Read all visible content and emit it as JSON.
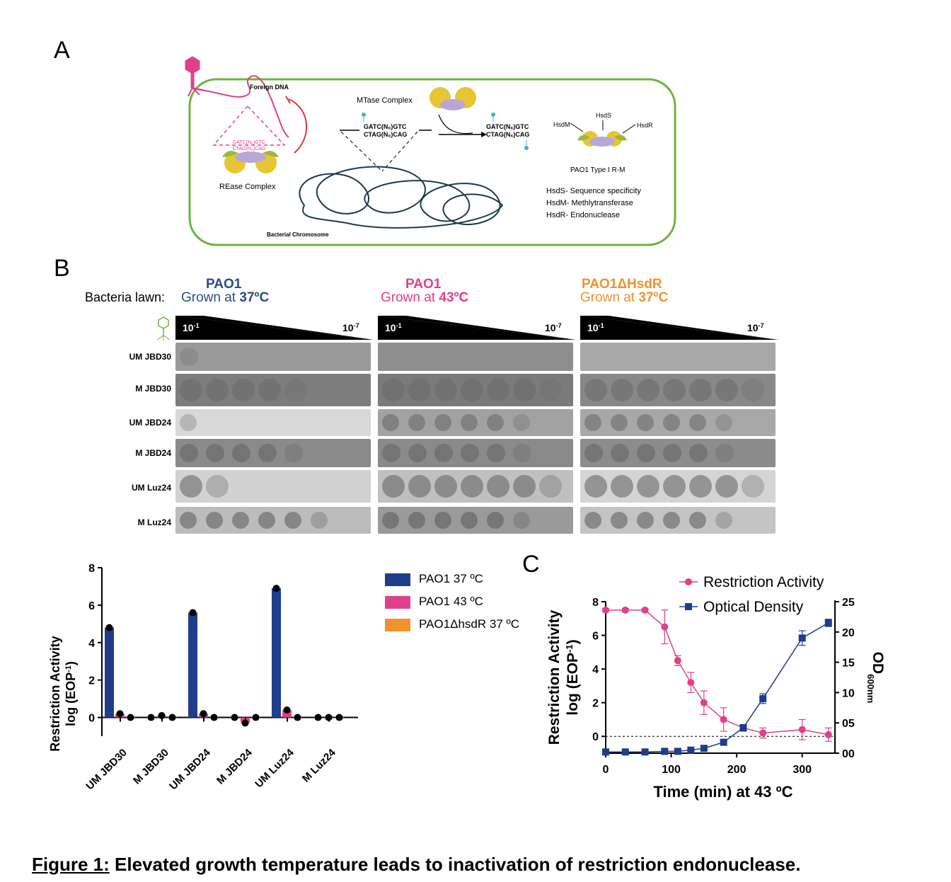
{
  "panels": {
    "a": "A",
    "b": "B",
    "c": "C"
  },
  "schematic": {
    "foreign_dna": "Foreign DNA",
    "rease_complex": "REase Complex",
    "rease_seq": [
      "GATC(N₆)GTC",
      "CTAG(N₆)CAG"
    ],
    "mtase_complex": "MTase Complex",
    "seq_before": [
      "GATC(N₆)GTC",
      "CTAG(N₆)CAG"
    ],
    "seq_after": [
      "GATC(N₆)GTC",
      "CTAG(N₆)CAG"
    ],
    "bacterial_chromosome": "Bacterial Chromosome",
    "hsdm": "HsdM",
    "hsds": "HsdS",
    "hsdr": "HsdR",
    "type_label": "PAO1 Type I R-M",
    "legend": [
      "HsdS- Sequence specificity",
      "HsdM- Methlytransferase",
      "HsdR- Endonuclease"
    ],
    "colors": {
      "cell": "#6cb33f",
      "dna": "#1f3a4a",
      "foreign": "#e0408a",
      "yellow": "#e8c534",
      "green": "#9ab93b",
      "purple": "#b7a7d6"
    }
  },
  "lawns": {
    "label": "Bacteria lawn:",
    "columns": [
      {
        "strain": "PAO1",
        "grown": "Grown at ",
        "temp": "37ºC",
        "color": "#2a4b8d"
      },
      {
        "strain": "PAO1",
        "grown": "Grown at ",
        "temp": "43ºC",
        "color": "#e0408a"
      },
      {
        "strain": "PAO1ΔHsdR",
        "grown": "Grown at ",
        "temp": "37ºC",
        "color": "#f0922e"
      }
    ],
    "dilution_start": "10",
    "dilution_start_exp": "-1",
    "dilution_end": "10",
    "dilution_end_exp": "-7",
    "rows": [
      "UM JBD30",
      "M JBD30",
      "UM JBD24",
      "M JBD24",
      "UM Luz24",
      "M Luz24"
    ]
  },
  "bar_chart": {
    "chart_data": {
      "type": "bar",
      "categories": [
        "UM JBD30",
        "M JBD30",
        "UM JBD24",
        "M JBD24",
        "UM Luz24",
        "M Luz24"
      ],
      "series": [
        {
          "name": "PAO1 37 ºC",
          "color": "#1f3d8a",
          "values": [
            4.8,
            0.0,
            5.6,
            0.0,
            6.9,
            0.0
          ]
        },
        {
          "name": "PAO1 43 ºC",
          "color": "#e0408a",
          "values": [
            0.2,
            0.1,
            0.2,
            -0.3,
            0.4,
            0.0
          ]
        },
        {
          "name": "PAO1ΔhsdR 37 ºC",
          "color": "#f0922e",
          "values": [
            0.0,
            0.0,
            0.0,
            0.0,
            0.0,
            0.0
          ]
        }
      ],
      "ylabel": "Restriction Activity",
      "ylabel2": "log (EOP",
      "ylabel2_sup": "-1",
      "ylabel2_end": ")",
      "ylim": [
        -1,
        8
      ],
      "yticks": [
        0,
        2,
        4,
        6,
        8
      ]
    }
  },
  "line_chart": {
    "chart_data": {
      "type": "line",
      "x": [
        0,
        30,
        60,
        90,
        110,
        130,
        150,
        180,
        210,
        240,
        300,
        340
      ],
      "series": [
        {
          "name": "Restriction Activity",
          "axis": "left",
          "color": "#e0408a",
          "values": [
            7.5,
            7.5,
            7.5,
            6.5,
            4.5,
            3.2,
            2.0,
            1.0,
            0.5,
            0.2,
            0.4,
            0.1
          ],
          "errors": [
            0.1,
            0.1,
            0.1,
            1.0,
            0.3,
            0.6,
            0.7,
            0.7,
            0.2,
            0.3,
            0.6,
            0.4
          ]
        },
        {
          "name": "Optical Density",
          "axis": "right",
          "color": "#1f3d8a",
          "values": [
            0.2,
            0.2,
            0.2,
            0.3,
            0.3,
            0.5,
            0.8,
            1.8,
            4.2,
            9.0,
            19.0,
            21.5
          ],
          "errors": [
            0.1,
            0.1,
            0.1,
            0.1,
            0.1,
            0.1,
            0.2,
            0.3,
            0.5,
            0.8,
            1.2,
            0.6
          ]
        }
      ],
      "xlabel": "Time (min) at 43 ºC",
      "xticks": [
        0,
        100,
        200,
        300
      ],
      "ylabel": "Restriction Activity",
      "ylabel2": "log (EOP",
      "ylabel2_sup": "-1",
      "ylabel2_end": ")",
      "ylim": [
        -1,
        8
      ],
      "yticks": [
        0,
        2,
        4,
        6,
        8
      ],
      "y2label": "OD",
      "y2label_sub": "600nm",
      "y2lim": [
        0,
        25
      ],
      "y2ticks": [
        "00",
        "05",
        "10",
        "15",
        "20",
        "25"
      ],
      "reference_line": 0
    }
  },
  "caption": {
    "prefix": "Figure 1:",
    "text": " Elevated growth temperature leads to inactivation of restriction endonuclease."
  }
}
